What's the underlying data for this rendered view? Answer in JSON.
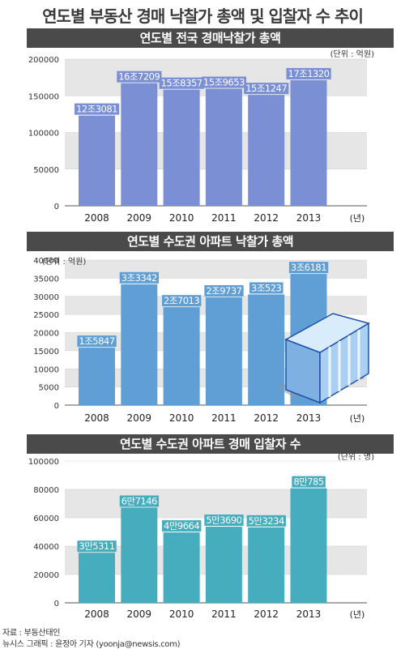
{
  "title": "연도별 부동산 경매 낙찰가 총액 및 입찰자 수 추이",
  "footer": {
    "source": "자료 : 부동산태인",
    "credit": "뉴시스 그래픽 : 윤정아 기자 (yoonja@newsis.com)"
  },
  "chart_data": [
    {
      "type": "bar",
      "title": "연도별 전국 경매낙찰가 총액",
      "unit_label": "(단위 : 억원)",
      "xunit_label": "(년)",
      "categories": [
        "2008",
        "2009",
        "2010",
        "2011",
        "2012",
        "2013"
      ],
      "values": [
        123081,
        167209,
        158357,
        159653,
        151247,
        171320
      ],
      "data_labels": [
        "12조3081",
        "16조7209",
        "15조8357",
        "15조9653",
        "15조1247",
        "17조1320"
      ],
      "yticks": [
        "0",
        "50000",
        "100000",
        "150000",
        "200000"
      ],
      "ylim": [
        0,
        200000
      ],
      "bar_color": "#7b8fd4",
      "label_color": "#ffffff"
    },
    {
      "type": "bar",
      "title": "연도별 수도권 아파트 낙찰가 총액",
      "unit_label": "(단위 : 억원)",
      "xunit_label": "(년)",
      "categories": [
        "2008",
        "2009",
        "2010",
        "2011",
        "2012",
        "2013"
      ],
      "values": [
        15847,
        33342,
        27013,
        29737,
        30523,
        36181
      ],
      "data_labels": [
        "1조5847",
        "3조3342",
        "2조7013",
        "2조9737",
        "3조523",
        "3조6181"
      ],
      "yticks": [
        "0",
        "5000",
        "10000",
        "15000",
        "20000",
        "25000",
        "30000",
        "35000",
        "40000"
      ],
      "ylim": [
        0,
        40000
      ],
      "bar_color": "#5f9fd6",
      "label_color": "#ffffff"
    },
    {
      "type": "bar",
      "title": "연도별 수도권 아파트 경매 입찰자 수",
      "unit_label": "(단위 : 명)",
      "xunit_label": "(년)",
      "categories": [
        "2008",
        "2009",
        "2010",
        "2011",
        "2012",
        "2013"
      ],
      "values": [
        35311,
        67146,
        49664,
        53690,
        53234,
        80785
      ],
      "data_labels": [
        "3만5311",
        "6만7146",
        "4만9664",
        "5만3690",
        "5만3234",
        "8만785"
      ],
      "yticks": [
        "0",
        "20000",
        "40000",
        "60000",
        "80000",
        "100000"
      ],
      "ylim": [
        0,
        100000
      ],
      "bar_color": "#46adbf",
      "label_color": "#ffffff"
    }
  ]
}
